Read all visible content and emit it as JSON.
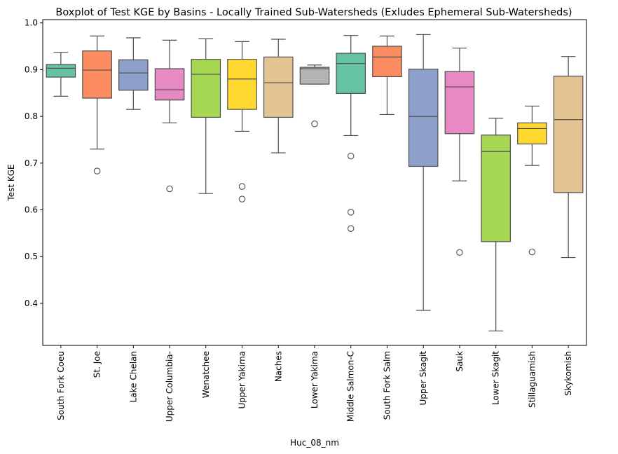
{
  "chart_data": {
    "type": "boxplot",
    "title": "Boxplot of Test KGE by Basins - Locally Trained Sub-Watersheds (Exludes Ephemeral Sub-Watersheds)",
    "xlabel": "Huc_08_nm",
    "ylabel": "Test KGE",
    "ylim": [
      0.31,
      1.007
    ],
    "yticks": [
      0.4,
      0.5,
      0.6,
      0.7,
      0.8,
      0.9,
      1.0
    ],
    "ytick_labels": [
      "0.4",
      "0.5",
      "0.6",
      "0.7",
      "0.8",
      "0.9",
      "1.0"
    ],
    "categories": [
      {
        "name": "South Fork Coeu",
        "whisker_low": 0.843,
        "q1": 0.884,
        "median": 0.903,
        "q3": 0.911,
        "whisker_high": 0.937,
        "outliers": [],
        "color": "#66c2a5"
      },
      {
        "name": "St. Joe",
        "whisker_low": 0.73,
        "q1": 0.839,
        "median": 0.899,
        "q3": 0.94,
        "whisker_high": 0.972,
        "outliers": [
          0.683
        ],
        "color": "#fc8d62"
      },
      {
        "name": "Lake Chelan",
        "whisker_low": 0.815,
        "q1": 0.856,
        "median": 0.893,
        "q3": 0.921,
        "whisker_high": 0.968,
        "outliers": [],
        "color": "#8da0cb"
      },
      {
        "name": "Upper Columbia-",
        "whisker_low": 0.786,
        "q1": 0.835,
        "median": 0.857,
        "q3": 0.902,
        "whisker_high": 0.963,
        "outliers": [
          0.645
        ],
        "color": "#e78ac3"
      },
      {
        "name": "Wenatchee",
        "whisker_low": 0.635,
        "q1": 0.798,
        "median": 0.89,
        "q3": 0.922,
        "whisker_high": 0.966,
        "outliers": [],
        "color": "#a6d854"
      },
      {
        "name": "Upper Yakima",
        "whisker_low": 0.768,
        "q1": 0.815,
        "median": 0.88,
        "q3": 0.922,
        "whisker_high": 0.96,
        "outliers": [
          0.65,
          0.623
        ],
        "color": "#ffd92f"
      },
      {
        "name": "Naches",
        "whisker_low": 0.722,
        "q1": 0.798,
        "median": 0.872,
        "q3": 0.927,
        "whisker_high": 0.965,
        "outliers": [],
        "color": "#e5c494"
      },
      {
        "name": "Lower Yakima",
        "whisker_low": 0.869,
        "q1": 0.869,
        "median": 0.902,
        "q3": 0.905,
        "whisker_high": 0.91,
        "outliers": [
          0.784
        ],
        "color": "#b3b3b3"
      },
      {
        "name": "Middle Salmon-C",
        "whisker_low": 0.759,
        "q1": 0.849,
        "median": 0.913,
        "q3": 0.935,
        "whisker_high": 0.973,
        "outliers": [
          0.715,
          0.595,
          0.56
        ],
        "color": "#66c2a5"
      },
      {
        "name": "South Fork Salm",
        "whisker_low": 0.804,
        "q1": 0.885,
        "median": 0.927,
        "q3": 0.95,
        "whisker_high": 0.972,
        "outliers": [],
        "color": "#fc8d62"
      },
      {
        "name": "Upper Skagit",
        "whisker_low": 0.385,
        "q1": 0.693,
        "median": 0.8,
        "q3": 0.901,
        "whisker_high": 0.975,
        "outliers": [],
        "color": "#8da0cb"
      },
      {
        "name": "Sauk",
        "whisker_low": 0.662,
        "q1": 0.763,
        "median": 0.863,
        "q3": 0.896,
        "whisker_high": 0.946,
        "outliers": [
          0.509
        ],
        "color": "#e78ac3"
      },
      {
        "name": "Lower Skagit",
        "whisker_low": 0.341,
        "q1": 0.532,
        "median": 0.725,
        "q3": 0.76,
        "whisker_high": 0.796,
        "outliers": [],
        "color": "#a6d854"
      },
      {
        "name": "Stillaguamish",
        "whisker_low": 0.695,
        "q1": 0.741,
        "median": 0.774,
        "q3": 0.786,
        "whisker_high": 0.822,
        "outliers": [
          0.51
        ],
        "color": "#ffd92f"
      },
      {
        "name": "Skykomish",
        "whisker_low": 0.498,
        "q1": 0.637,
        "median": 0.793,
        "q3": 0.886,
        "whisker_high": 0.928,
        "outliers": [],
        "color": "#e5c494"
      }
    ],
    "line_color": "#4d4d4d",
    "grid": false,
    "legend": "none"
  }
}
